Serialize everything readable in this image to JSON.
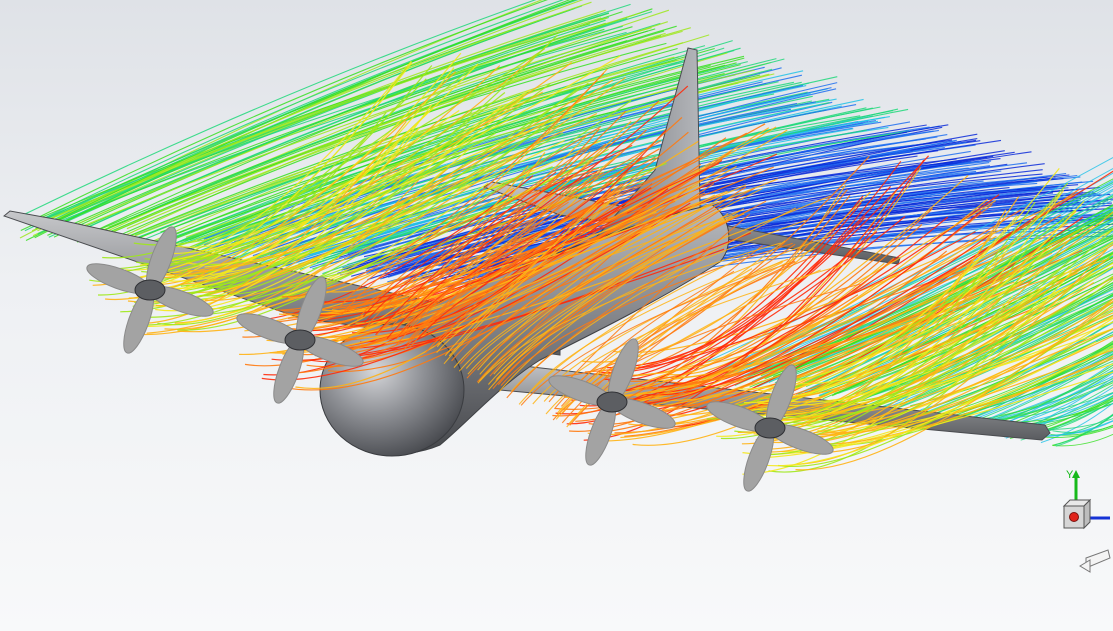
{
  "view": {
    "background_top": "#dfe2e7",
    "background_bottom": "#f8f9fa",
    "model_color": "#8e9095",
    "propeller_color": "#a3a3a3"
  },
  "streamlines": {
    "color_scale": [
      "#0a2ad8",
      "#1f6ff0",
      "#21c2e8",
      "#1ed87a",
      "#35e020",
      "#9ee81a",
      "#f4e81c",
      "#ffb314",
      "#ff7a10",
      "#ff2a0a"
    ]
  },
  "triad": {
    "y_label": "Y",
    "x_axis_color": "#1533d6",
    "y_axis_color": "#16b91a",
    "z_axis_color": "#e0241b",
    "icons": [
      "view-cube-icon",
      "rotate-view-icon"
    ]
  }
}
